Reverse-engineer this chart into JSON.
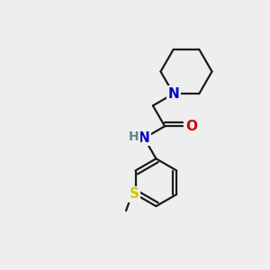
{
  "background_color": "#eeeeee",
  "bond_color": "#1a1a1a",
  "bond_lw": 1.6,
  "N_color": "#0000cc",
  "O_color": "#cc0000",
  "S_color": "#cccc00",
  "H_color": "#5a8a8a",
  "atom_bg": "#eeeeee",
  "figsize": [
    3.0,
    3.0
  ],
  "dpi": 100,
  "xlim": [
    0,
    10
  ],
  "ylim": [
    0,
    10
  ]
}
